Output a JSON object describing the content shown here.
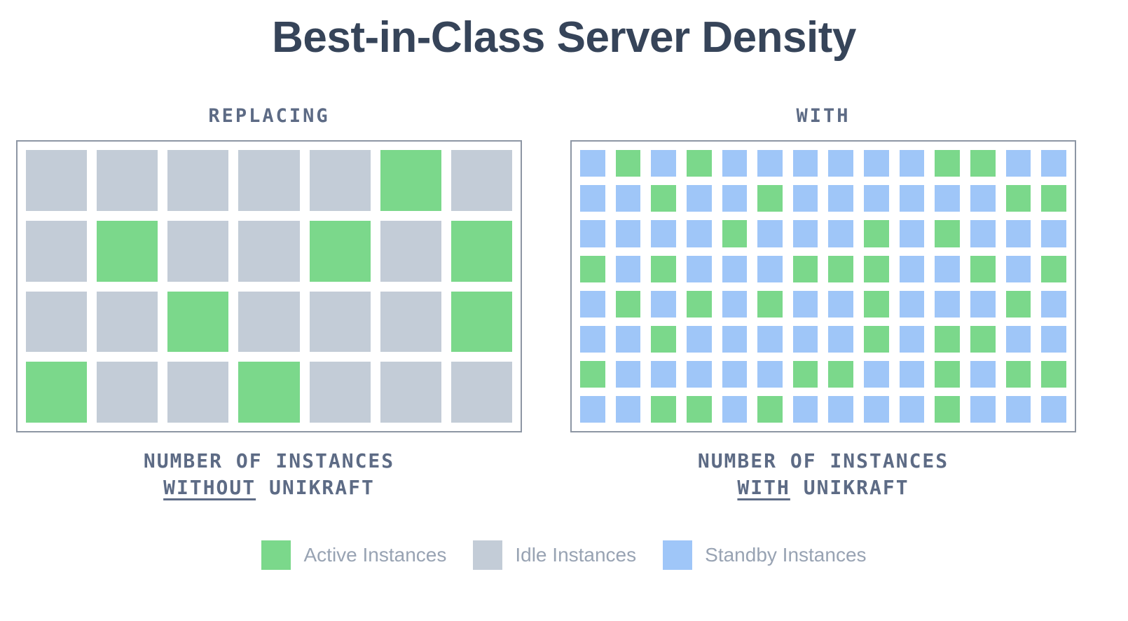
{
  "title": "Best-in-Class Server Density",
  "status_colors": {
    "active": "#7bd88b",
    "idle": "#c3ccd7",
    "standby": "#9fc6f8"
  },
  "cell_codes": {
    "A": "active",
    "I": "idle",
    "S": "standby"
  },
  "panels": [
    {
      "id": "without-unikraft",
      "header": "REPLACING",
      "caption": {
        "line1": "NUMBER OF INSTANCES",
        "keyword": "WITHOUT",
        "suffix": " UNIKRAFT"
      },
      "grid": {
        "cols": 7,
        "rows": 4,
        "cells": [
          "IIIIIAI",
          "IAIIAIA",
          "IIAIIIA",
          "AIIAIII"
        ]
      }
    },
    {
      "id": "with-unikraft",
      "header": "WITH",
      "caption": {
        "line1": "NUMBER OF INSTANCES",
        "keyword": "WITH",
        "suffix": " UNIKRAFT"
      },
      "grid": {
        "cols": 14,
        "rows": 8,
        "cells": [
          "SASASSSSSSAASS",
          "SSASSASSSSSSAA",
          "SSSSASSSASASSS",
          "ASASSSAAASSASA",
          "SASASASSASSSAS",
          "SSASSSSSASAASS",
          "ASSSSSAASSASAA",
          "SSAASASSSSASSS"
        ]
      }
    }
  ],
  "legend": [
    {
      "key": "active",
      "label": "Active Instances"
    },
    {
      "key": "idle",
      "label": "Idle Instances"
    },
    {
      "key": "standby",
      "label": "Standby Instances"
    }
  ]
}
